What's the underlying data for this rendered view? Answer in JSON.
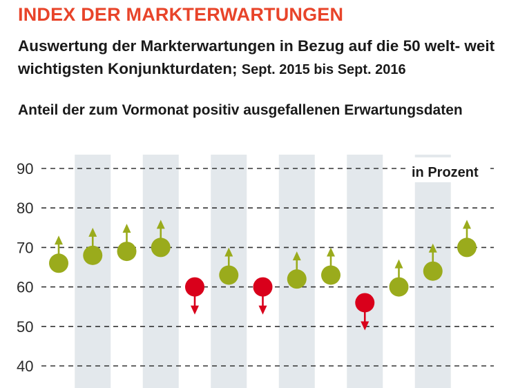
{
  "header": {
    "title": "INDEX DER MARKTERWARTUNGEN",
    "subtitle_main": "Auswertung der Markterwartungen in Bezug auf die 50 welt- weit wichtigsten Konjunkturdaten;",
    "subtitle_range": "Sept. 2015 bis Sept. 2016",
    "caption": "Anteil der zum Vormonat positiv ausgefallenen Erwartungsdaten"
  },
  "colors": {
    "up": "#9aab1c",
    "down": "#d9001b",
    "band": "#e3e8ec",
    "grid": "#333333",
    "title": "#e8442a"
  },
  "chart_data": {
    "type": "scatter",
    "unit_label": "in Prozent",
    "ylim": [
      40,
      90
    ],
    "yticks": [
      40,
      50,
      60,
      70,
      80,
      90
    ],
    "grid": "horizontal-dashed",
    "values": [
      66,
      68,
      69,
      70,
      60,
      63,
      60,
      62,
      63,
      56,
      60,
      64,
      70
    ],
    "direction": [
      "up",
      "up",
      "up",
      "up",
      "down",
      "up",
      "down",
      "up",
      "up",
      "down",
      "up",
      "up",
      "up"
    ],
    "shaded_columns": [
      1,
      3,
      5,
      7,
      9,
      11
    ]
  }
}
